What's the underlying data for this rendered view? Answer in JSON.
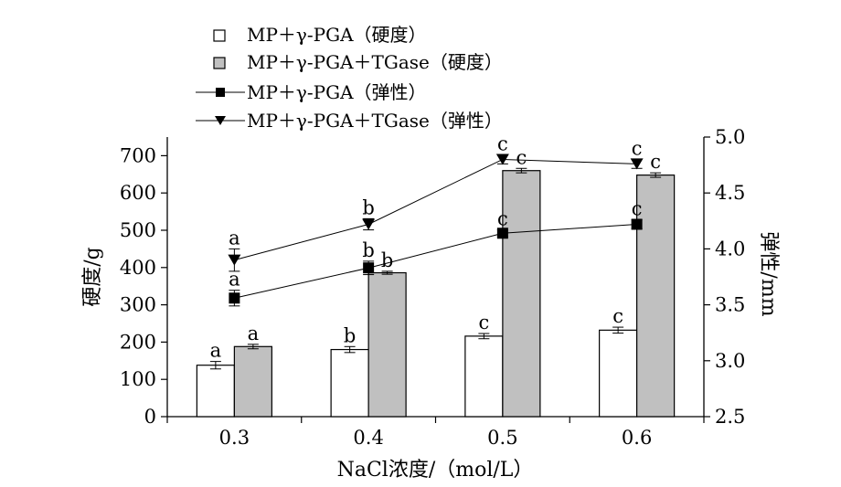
{
  "chart_data": {
    "type": "bar",
    "xlabel": "NaCl浓度/（mol/L）",
    "ylabel": "硬度/g",
    "y2label": "弹性/mm",
    "categories": [
      "0.3",
      "0.4",
      "0.5",
      "0.6"
    ],
    "ylim": [
      0,
      750
    ],
    "yticks": [
      "0",
      "100",
      "200",
      "300",
      "400",
      "500",
      "600",
      "700"
    ],
    "y2lim": [
      2.5,
      5.0
    ],
    "y2ticks": [
      "2.5",
      "3.0",
      "3.5",
      "4.0",
      "4.5",
      "5.0"
    ],
    "bar_series": [
      {
        "name": "MP＋γ-PGA（硬度）",
        "color": "#ffffff",
        "values": [
          138,
          180,
          216,
          232
        ],
        "errors": [
          10,
          8,
          7,
          8
        ],
        "letters": [
          "a",
          "b",
          "c",
          "c"
        ]
      },
      {
        "name": "MP＋γ-PGA＋TGase（硬度）",
        "color": "#c0c0c0",
        "values": [
          188,
          386,
          660,
          648
        ],
        "errors": [
          6,
          4,
          6,
          6
        ],
        "letters": [
          "a",
          "b",
          "c",
          "c"
        ]
      }
    ],
    "line_series": [
      {
        "name": "MP＋γ-PGA（弹性）",
        "marker": "square",
        "values": [
          3.56,
          3.83,
          4.14,
          4.22
        ],
        "errors": [
          0.07,
          0.06,
          0.03,
          0.04
        ],
        "letters": [
          "a",
          "b",
          "c",
          "c"
        ]
      },
      {
        "name": "MP＋γ-PGA＋TGase（弹性）",
        "marker": "triangle-down",
        "values": [
          3.9,
          4.22,
          4.8,
          4.76
        ],
        "errors": [
          0.1,
          0.05,
          0.04,
          0.04
        ],
        "letters": [
          "a",
          "b",
          "c",
          "c"
        ]
      }
    ],
    "legend": [
      "MP＋γ-PGA（硬度）",
      "MP＋γ-PGA＋TGase（硬度）",
      "MP＋γ-PGA（弹性）",
      "MP＋γ-PGA＋TGase（弹性）"
    ]
  }
}
